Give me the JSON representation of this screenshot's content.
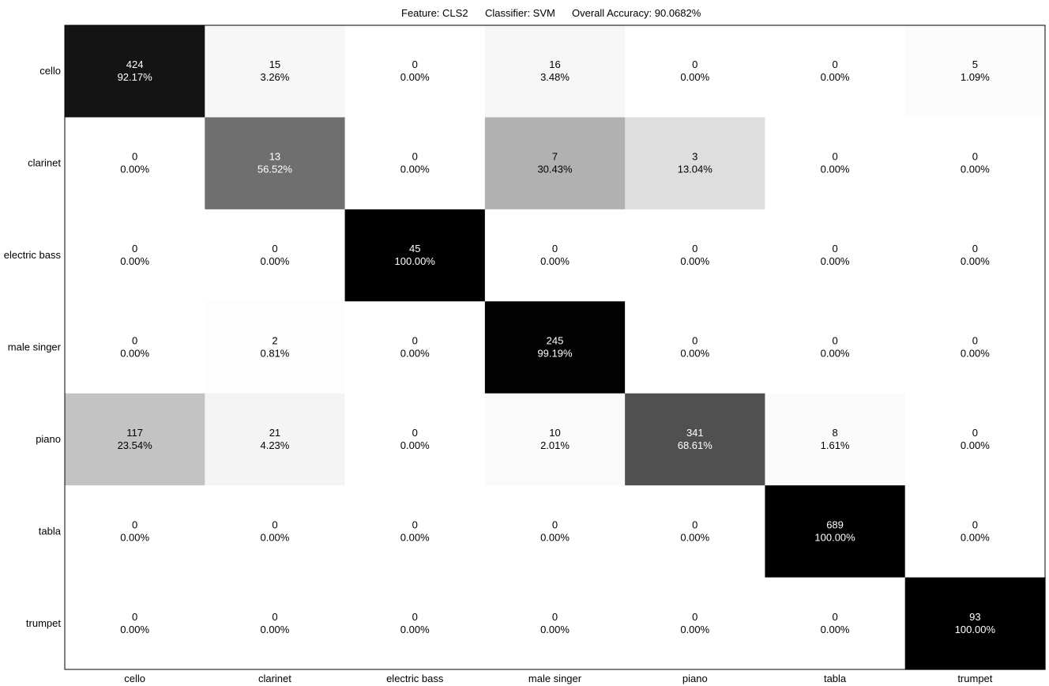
{
  "chart_data": {
    "type": "heatmap",
    "title": {
      "feature": "Feature: CLS2",
      "classifier": "Classifier: SVM",
      "accuracy": "Overall Accuracy: 90.0682%"
    },
    "xlabel": "",
    "ylabel": "",
    "grid": false,
    "colormap": "grayscale (white = 0%, black = 100% of row)",
    "row_labels": [
      "cello",
      "clarinet",
      "electric bass",
      "male singer",
      "piano",
      "tabla",
      "trumpet"
    ],
    "col_labels": [
      "cello",
      "clarinet",
      "electric bass",
      "male singer",
      "piano",
      "tabla",
      "trumpet"
    ],
    "counts": [
      [
        424,
        15,
        0,
        16,
        0,
        0,
        5
      ],
      [
        0,
        13,
        0,
        7,
        3,
        0,
        0
      ],
      [
        0,
        0,
        45,
        0,
        0,
        0,
        0
      ],
      [
        0,
        2,
        0,
        245,
        0,
        0,
        0
      ],
      [
        117,
        21,
        0,
        10,
        341,
        8,
        0
      ],
      [
        0,
        0,
        0,
        0,
        0,
        689,
        0
      ],
      [
        0,
        0,
        0,
        0,
        0,
        0,
        93
      ]
    ],
    "percentages": [
      [
        "92.17%",
        "3.26%",
        "0.00%",
        "3.48%",
        "0.00%",
        "0.00%",
        "1.09%"
      ],
      [
        "0.00%",
        "56.52%",
        "0.00%",
        "30.43%",
        "13.04%",
        "0.00%",
        "0.00%"
      ],
      [
        "0.00%",
        "0.00%",
        "100.00%",
        "0.00%",
        "0.00%",
        "0.00%",
        "0.00%"
      ],
      [
        "0.00%",
        "0.81%",
        "0.00%",
        "99.19%",
        "0.00%",
        "0.00%",
        "0.00%"
      ],
      [
        "23.54%",
        "4.23%",
        "0.00%",
        "2.01%",
        "68.61%",
        "1.61%",
        "0.00%"
      ],
      [
        "0.00%",
        "0.00%",
        "0.00%",
        "0.00%",
        "0.00%",
        "100.00%",
        "0.00%"
      ],
      [
        "0.00%",
        "0.00%",
        "0.00%",
        "0.00%",
        "0.00%",
        "0.00%",
        "100.00%"
      ]
    ]
  }
}
